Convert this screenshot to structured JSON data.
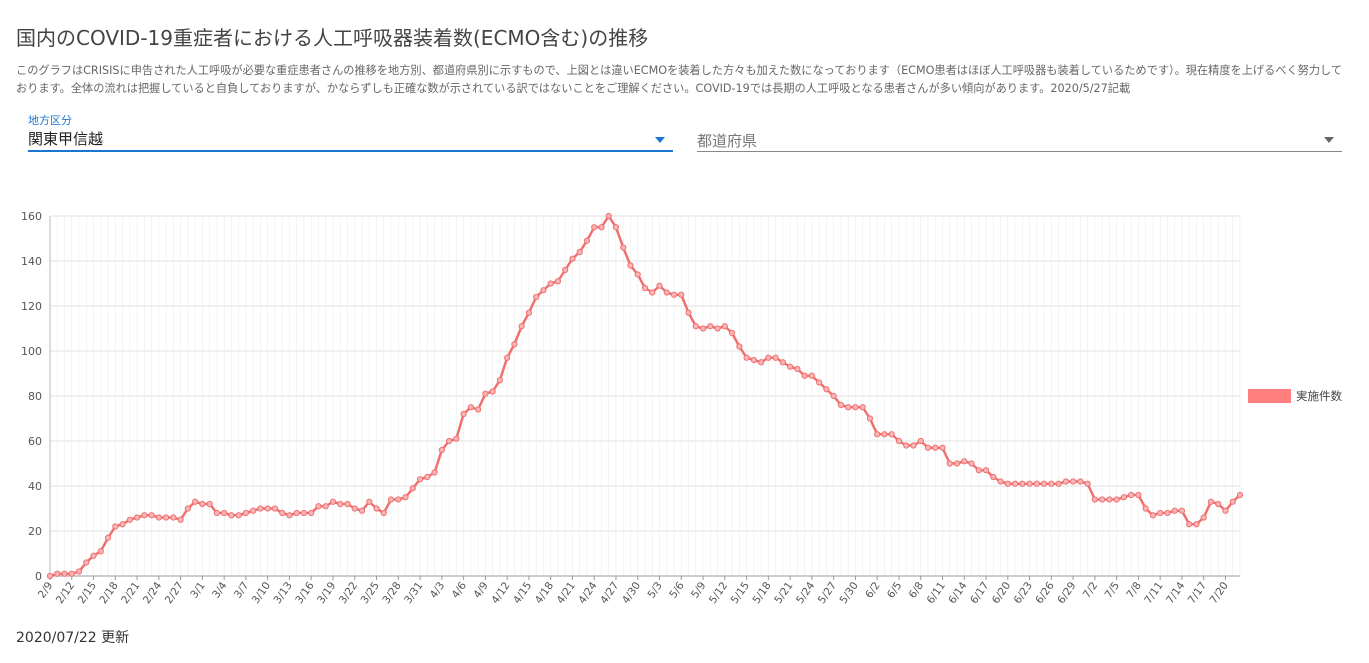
{
  "page": {
    "title": "国内のCOVID-19重症者における人工呼吸器装着数(ECMO含む)の推移",
    "description": "このグラフはCRISISに申告された人工呼吸が必要な重症患者さんの推移を地方別、都道府県別に示すもので、上図とは違いECMOを装着した方々も加えた数になっております（ECMO患者はほぼ人工呼吸器も装着しているためです）。現在精度を上げるべく努力しております。全体の流れは把握していると自負しておりますが、かならずしも正確な数が示されている訳ではないことをご理解ください。COVID-19では長期の人工呼吸となる患者さんが多い傾向があります。2020/5/27記載",
    "updated": "2020/07/22 更新"
  },
  "filters": {
    "region": {
      "label": "地方区分",
      "value": "関東甲信越"
    },
    "prefecture": {
      "placeholder": "都道府県"
    }
  },
  "colors": {
    "line": "#f07070",
    "legend": "#ff7f7f",
    "accent": "#1976d2",
    "grid": "#e0e0e0"
  },
  "chart_data": {
    "type": "line",
    "xlabel": "",
    "ylabel": "",
    "ylim": [
      0,
      160
    ],
    "yticks": [
      0,
      20,
      40,
      60,
      80,
      100,
      120,
      140,
      160
    ],
    "grid": true,
    "legend_position": "right",
    "x_tick_labels": [
      "2/9",
      "2/12",
      "2/15",
      "2/18",
      "2/21",
      "2/24",
      "2/27",
      "3/1",
      "3/4",
      "3/7",
      "3/10",
      "3/13",
      "3/16",
      "3/19",
      "3/22",
      "3/25",
      "3/28",
      "3/31",
      "4/3",
      "4/6",
      "4/9",
      "4/12",
      "4/15",
      "4/18",
      "4/21",
      "4/24",
      "4/27",
      "4/30",
      "5/3",
      "5/6",
      "5/9",
      "5/12",
      "5/15",
      "5/18",
      "5/21",
      "5/24",
      "5/27",
      "5/30",
      "6/2",
      "6/5",
      "6/8",
      "6/11",
      "6/14",
      "6/17",
      "6/20",
      "6/23",
      "6/26",
      "6/29",
      "7/2",
      "7/5",
      "7/8",
      "7/11",
      "7/14",
      "7/17",
      "7/20"
    ],
    "series": [
      {
        "name": "実施件数",
        "x_start": "2020-02-09",
        "values": [
          0,
          1,
          1,
          1,
          2,
          6,
          9,
          11,
          17,
          22,
          23,
          25,
          26,
          27,
          27,
          26,
          26,
          26,
          25,
          30,
          33,
          32,
          32,
          28,
          28,
          27,
          27,
          28,
          29,
          30,
          30,
          30,
          28,
          27,
          28,
          28,
          28,
          31,
          31,
          33,
          32,
          32,
          30,
          29,
          33,
          30,
          28,
          34,
          34,
          35,
          39,
          43,
          44,
          46,
          56,
          60,
          61,
          72,
          75,
          74,
          81,
          82,
          87,
          97,
          103,
          111,
          117,
          124,
          127,
          130,
          131,
          136,
          141,
          144,
          149,
          155,
          155,
          160,
          155,
          146,
          138,
          134,
          128,
          126,
          129,
          126,
          125,
          125,
          117,
          111,
          110,
          111,
          110,
          111,
          108,
          102,
          97,
          96,
          95,
          97,
          97,
          95,
          93,
          92,
          89,
          89,
          86,
          83,
          80,
          76,
          75,
          75,
          75,
          70,
          63,
          63,
          63,
          60,
          58,
          58,
          60,
          57,
          57,
          57,
          50,
          50,
          51,
          50,
          47,
          47,
          44,
          42,
          41,
          41,
          41,
          41,
          41,
          41,
          41,
          41,
          42,
          42,
          42,
          41,
          34,
          34,
          34,
          34,
          35,
          36,
          36,
          30,
          27,
          28,
          28,
          29,
          29,
          23,
          23,
          26,
          33,
          32,
          29,
          33,
          36
        ]
      }
    ]
  }
}
